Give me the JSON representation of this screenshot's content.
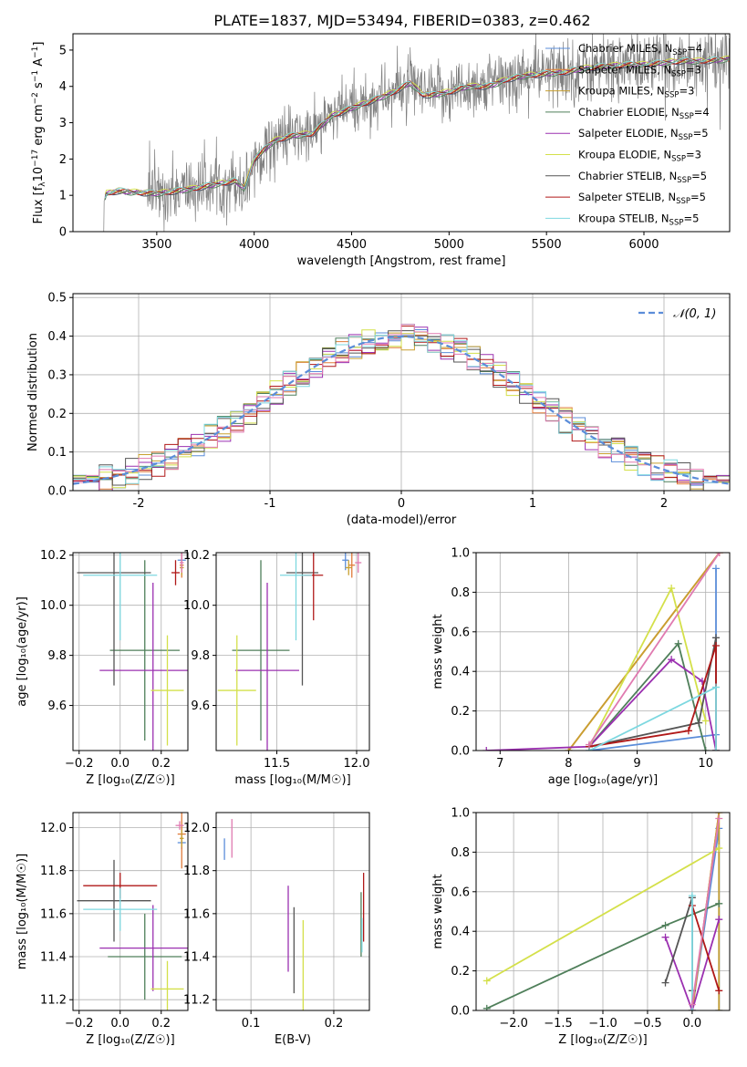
{
  "figure_title": "PLATE=1837, MJD=53494, FIBERID=0383, z=0.462",
  "colors": {
    "Chabrier MILES": "#5b8dd9",
    "Salpeter MILES": "#e07b3a",
    "Kroupa MILES": "#c8a030",
    "Chabrier ELODIE": "#4f7f5a",
    "Salpeter ELODIE": "#9b30b0",
    "Kroupa ELODIE": "#d4e04a",
    "Chabrier STELIB": "#555555",
    "Salpeter STELIB": "#b01818",
    "Kroupa STELIB": "#7dd8e0",
    "pink": "#e07ab0",
    "data": "#808080"
  },
  "chart_data": [
    {
      "id": "spectrum",
      "type": "line",
      "xlabel": "wavelength [Angstrom, rest frame]",
      "ylabel": "Flux [f_λ 10^-17 erg cm^-2 s^-1 A^-1]",
      "xlim": [
        3070,
        6440
      ],
      "ylim": [
        0,
        5.45
      ],
      "xticks": [
        3500,
        4000,
        4500,
        5000,
        5500,
        6000
      ],
      "yticks": [
        0,
        1,
        2,
        3,
        4,
        5
      ],
      "grid": false,
      "legend_position": "top-right",
      "legend": [
        {
          "label": "Chabrier MILES, N",
          "sub": "SSP",
          "suffix": "=4",
          "color": "#5b8dd9"
        },
        {
          "label": "Salpeter MILES, N",
          "sub": "SSP",
          "suffix": "=3",
          "color": "#e07b3a"
        },
        {
          "label": "Kroupa MILES, N",
          "sub": "SSP",
          "suffix": "=3",
          "color": "#c8a030"
        },
        {
          "label": "Chabrier ELODIE, N",
          "sub": "SSP",
          "suffix": "=4",
          "color": "#4f7f5a"
        },
        {
          "label": "Salpeter ELODIE, N",
          "sub": "SSP",
          "suffix": "=5",
          "color": "#9b30b0"
        },
        {
          "label": "Kroupa ELODIE, N",
          "sub": "SSP",
          "suffix": "=3",
          "color": "#d4e04a"
        },
        {
          "label": "Chabrier STELIB, N",
          "sub": "SSP",
          "suffix": "=5",
          "color": "#555555"
        },
        {
          "label": "Salpeter STELIB, N",
          "sub": "SSP",
          "suffix": "=5",
          "color": "#b01818"
        },
        {
          "label": "Kroupa STELIB, N",
          "sub": "SSP",
          "suffix": "=5",
          "color": "#7dd8e0"
        }
      ],
      "continuum": [
        [
          3230,
          0.85
        ],
        [
          3240,
          1.05
        ],
        [
          3300,
          1.12
        ],
        [
          3400,
          1.08
        ],
        [
          3500,
          1.05
        ],
        [
          3600,
          1.12
        ],
        [
          3700,
          1.2
        ],
        [
          3800,
          1.3
        ],
        [
          3900,
          1.4
        ],
        [
          3950,
          1.2
        ],
        [
          4000,
          2.0
        ],
        [
          4100,
          2.5
        ],
        [
          4200,
          2.65
        ],
        [
          4300,
          2.7
        ],
        [
          4400,
          3.2
        ],
        [
          4500,
          3.4
        ],
        [
          4600,
          3.6
        ],
        [
          4700,
          3.8
        ],
        [
          4800,
          4.1
        ],
        [
          4860,
          3.8
        ],
        [
          4900,
          3.75
        ],
        [
          5000,
          3.85
        ],
        [
          5100,
          4.0
        ],
        [
          5200,
          4.0
        ],
        [
          5300,
          4.2
        ],
        [
          5400,
          4.3
        ],
        [
          5500,
          4.35
        ],
        [
          5600,
          4.4
        ],
        [
          5700,
          4.5
        ],
        [
          5800,
          4.55
        ],
        [
          5900,
          4.6
        ],
        [
          6000,
          4.6
        ],
        [
          6100,
          4.65
        ],
        [
          6200,
          4.7
        ],
        [
          6300,
          4.7
        ],
        [
          6440,
          4.75
        ]
      ]
    },
    {
      "id": "residuals",
      "type": "line",
      "xlabel": "(data-model)/error",
      "ylabel": "Normed distribution",
      "xlim": [
        -2.5,
        2.5
      ],
      "ylim": [
        0,
        0.51
      ],
      "xticks": [
        -2,
        -1,
        0,
        1,
        2
      ],
      "yticks": [
        0.0,
        0.1,
        0.2,
        0.3,
        0.4,
        0.5
      ],
      "grid": true,
      "legend_position": "top-right",
      "legend_label": "𝒩(0, 1)",
      "normal_color": "#5b8dd9",
      "bin_width": 0.1
    },
    {
      "id": "age_vs_Z",
      "type": "scatter",
      "xlabel": "Z [log₁₀(Z/Z☉)]",
      "ylabel": "age  [log₁₀(age/yr)]",
      "xlim": [
        -0.23,
        0.33
      ],
      "ylim": [
        9.42,
        10.21
      ],
      "xticks": [
        -0.2,
        0.0,
        0.2
      ],
      "yticks": [
        9.6,
        9.8,
        10.0,
        10.2
      ],
      "grid": true,
      "points": [
        {
          "x": 0.3,
          "y": 10.18,
          "xerr": 0.02,
          "yerr": 0.04,
          "color": "#5b8dd9"
        },
        {
          "x": 0.3,
          "y": 10.16,
          "xerr": 0.01,
          "yerr": 0.05,
          "color": "#e07b3a"
        },
        {
          "x": 0.3,
          "y": 10.15,
          "xerr": 0.01,
          "yerr": 0.03,
          "color": "#c8a030"
        },
        {
          "x": 0.12,
          "y": 9.82,
          "xerr": 0.17,
          "yerr": 0.36,
          "color": "#4f7f5a"
        },
        {
          "x": 0.16,
          "y": 9.74,
          "xerr": 0.26,
          "yerr": 0.35,
          "color": "#9b30b0"
        },
        {
          "x": 0.23,
          "y": 9.66,
          "xerr": 0.08,
          "yerr": 0.22,
          "color": "#d4e04a"
        },
        {
          "x": -0.03,
          "y": 10.13,
          "xerr": 0.18,
          "yerr": 0.45,
          "color": "#555555"
        },
        {
          "x": 0.27,
          "y": 10.13,
          "xerr": 0.02,
          "yerr": 0.05,
          "color": "#b01818"
        },
        {
          "x": 0.0,
          "y": 10.12,
          "xerr": 0.18,
          "yerr": 0.26,
          "color": "#7dd8e0"
        },
        {
          "x": 0.3,
          "y": 10.17,
          "xerr": 0.01,
          "yerr": 0.04,
          "color": "#e07ab0"
        }
      ]
    },
    {
      "id": "age_vs_mass",
      "type": "scatter",
      "xlabel": "mass [log₁₀(M/M☉)]",
      "ylabel": "",
      "xlim": [
        11.12,
        12.08
      ],
      "ylim": [
        9.42,
        10.21
      ],
      "xticks": [
        11.5,
        12.0
      ],
      "yticks": [
        9.6,
        9.8,
        10.0,
        10.2
      ],
      "grid": true,
      "points": [
        {
          "x": 11.93,
          "y": 10.18,
          "xerr": 0.02,
          "yerr": 0.04,
          "color": "#5b8dd9"
        },
        {
          "x": 11.97,
          "y": 10.16,
          "xerr": 0.02,
          "yerr": 0.05,
          "color": "#e07b3a"
        },
        {
          "x": 11.95,
          "y": 10.15,
          "xerr": 0.02,
          "yerr": 0.03,
          "color": "#c8a030"
        },
        {
          "x": 11.4,
          "y": 9.82,
          "xerr": 0.18,
          "yerr": 0.36,
          "color": "#4f7f5a"
        },
        {
          "x": 11.44,
          "y": 9.74,
          "xerr": 0.2,
          "yerr": 0.35,
          "color": "#9b30b0"
        },
        {
          "x": 11.25,
          "y": 9.66,
          "xerr": 0.12,
          "yerr": 0.22,
          "color": "#d4e04a"
        },
        {
          "x": 11.66,
          "y": 10.13,
          "xerr": 0.1,
          "yerr": 0.45,
          "color": "#555555"
        },
        {
          "x": 11.73,
          "y": 10.12,
          "xerr": 0.06,
          "yerr": 0.18,
          "color": "#b01818"
        },
        {
          "x": 11.62,
          "y": 10.12,
          "xerr": 0.1,
          "yerr": 0.26,
          "color": "#7dd8e0"
        },
        {
          "x": 12.01,
          "y": 10.17,
          "xerr": 0.02,
          "yerr": 0.04,
          "color": "#e07ab0"
        }
      ]
    },
    {
      "id": "weight_vs_age",
      "type": "line",
      "xlabel": "age  [log₁₀(age/yr)]",
      "ylabel": "mass weight",
      "xlim": [
        6.65,
        10.35
      ],
      "ylim": [
        0,
        1
      ],
      "xticks": [
        7,
        8,
        9,
        10
      ],
      "yticks": [
        0.0,
        0.2,
        0.4,
        0.6,
        0.8,
        1.0
      ],
      "grid": true,
      "series": [
        {
          "color": "#5b8dd9",
          "points": [
            [
              8.3,
              0.0
            ],
            [
              10.15,
              0.08
            ],
            [
              10.15,
              0.92
            ],
            [
              10.15,
              0.0
            ]
          ]
        },
        {
          "color": "#e07b3a",
          "points": [
            [
              8.0,
              0.0
            ],
            [
              10.2,
              1.0
            ]
          ]
        },
        {
          "color": "#c8a030",
          "points": [
            [
              8.0,
              0.0
            ],
            [
              10.2,
              1.0
            ]
          ]
        },
        {
          "color": "#4f7f5a",
          "points": [
            [
              8.3,
              0.02
            ],
            [
              9.6,
              0.54
            ],
            [
              10.0,
              0.0
            ]
          ]
        },
        {
          "color": "#9b30b0",
          "points": [
            [
              6.8,
              0.0
            ],
            [
              8.3,
              0.02
            ],
            [
              9.5,
              0.46
            ],
            [
              9.95,
              0.35
            ],
            [
              10.15,
              0.0
            ]
          ]
        },
        {
          "color": "#d4e04a",
          "points": [
            [
              8.3,
              0.02
            ],
            [
              9.5,
              0.82
            ],
            [
              10.0,
              0.15
            ]
          ]
        },
        {
          "color": "#555555",
          "points": [
            [
              8.3,
              0.02
            ],
            [
              9.9,
              0.14
            ],
            [
              10.15,
              0.57
            ],
            [
              10.15,
              0.0
            ]
          ]
        },
        {
          "color": "#b01818",
          "points": [
            [
              8.3,
              0.02
            ],
            [
              9.75,
              0.1
            ],
            [
              10.15,
              0.53
            ],
            [
              10.15,
              0.0
            ]
          ]
        },
        {
          "color": "#7dd8e0",
          "points": [
            [
              8.3,
              0.0
            ],
            [
              10.15,
              0.32
            ],
            [
              10.15,
              0.0
            ]
          ]
        },
        {
          "color": "#e07ab0",
          "points": [
            [
              8.3,
              0.03
            ],
            [
              10.2,
              1.0
            ]
          ]
        }
      ]
    },
    {
      "id": "mass_vs_Z",
      "type": "scatter",
      "xlabel": "Z [log₁₀(Z/Z☉)]",
      "ylabel": "mass [log₁₀(M/M☉)]",
      "xlim": [
        -0.23,
        0.33
      ],
      "ylim": [
        11.15,
        12.07
      ],
      "xticks": [
        -0.2,
        0.0,
        0.2
      ],
      "yticks": [
        11.2,
        11.4,
        11.6,
        11.8,
        12.0
      ],
      "grid": true,
      "points": [
        {
          "x": 0.3,
          "y": 11.93,
          "xerr": 0.02,
          "yerr": 0.03,
          "color": "#5b8dd9"
        },
        {
          "x": 0.3,
          "y": 11.97,
          "xerr": 0.02,
          "yerr": 0.16,
          "color": "#e07b3a"
        },
        {
          "x": 0.3,
          "y": 11.95,
          "xerr": 0.01,
          "yerr": 0.04,
          "color": "#c8a030"
        },
        {
          "x": 0.12,
          "y": 11.4,
          "xerr": 0.18,
          "yerr": 0.2,
          "color": "#4f7f5a"
        },
        {
          "x": 0.16,
          "y": 11.44,
          "xerr": 0.26,
          "yerr": 0.2,
          "color": "#9b30b0"
        },
        {
          "x": 0.23,
          "y": 11.25,
          "xerr": 0.08,
          "yerr": 0.13,
          "color": "#d4e04a"
        },
        {
          "x": -0.03,
          "y": 11.66,
          "xerr": 0.18,
          "yerr": 0.19,
          "color": "#555555"
        },
        {
          "x": 0.0,
          "y": 11.73,
          "xerr": 0.18,
          "yerr": 0.06,
          "color": "#b01818"
        },
        {
          "x": 0.0,
          "y": 11.62,
          "xerr": 0.18,
          "yerr": 0.1,
          "color": "#7dd8e0"
        },
        {
          "x": 0.29,
          "y": 12.01,
          "xerr": 0.02,
          "yerr": 0.02,
          "color": "#e07ab0"
        }
      ]
    },
    {
      "id": "mass_vs_ebv",
      "type": "scatter",
      "xlabel": "E(B-V)",
      "ylabel": "",
      "xlim": [
        0.058,
        0.243
      ],
      "ylim": [
        11.15,
        12.07
      ],
      "xticks": [
        0.1,
        0.2
      ],
      "yticks": [
        11.2,
        11.4,
        11.6,
        11.8,
        12.0
      ],
      "grid": true,
      "points": [
        {
          "x": 0.068,
          "y": 11.9,
          "xerr": 0.0,
          "yerr": 0.05,
          "color": "#5b8dd9"
        },
        {
          "x": 0.077,
          "y": 11.95,
          "xerr": 0.0,
          "yerr": 0.09,
          "color": "#e07ab0"
        },
        {
          "x": 0.145,
          "y": 11.53,
          "xerr": 0.0,
          "yerr": 0.2,
          "color": "#9b30b0"
        },
        {
          "x": 0.152,
          "y": 11.43,
          "xerr": 0.0,
          "yerr": 0.2,
          "color": "#555555"
        },
        {
          "x": 0.163,
          "y": 11.36,
          "xerr": 0.0,
          "yerr": 0.21,
          "color": "#d4e04a"
        },
        {
          "x": 0.236,
          "y": 11.63,
          "xerr": 0.0,
          "yerr": 0.16,
          "color": "#b01818"
        },
        {
          "x": 0.233,
          "y": 11.55,
          "xerr": 0.0,
          "yerr": 0.15,
          "color": "#4f7f5a"
        },
        {
          "x": 0.234,
          "y": 11.5,
          "xerr": 0.0,
          "yerr": 0.08,
          "color": "#7dd8e0"
        }
      ]
    },
    {
      "id": "weight_vs_Z",
      "type": "line",
      "xlabel": "Z [log₁₀(Z/Z☉)]",
      "ylabel": "mass weight",
      "xlim": [
        -2.42,
        0.42
      ],
      "ylim": [
        0,
        1
      ],
      "xticks": [
        -2.0,
        -1.5,
        -1.0,
        -0.5,
        0.0
      ],
      "yticks": [
        0.0,
        0.2,
        0.4,
        0.6,
        0.8,
        1.0
      ],
      "grid": true,
      "series": [
        {
          "color": "#5b8dd9",
          "points": [
            [
              0.0,
              0.0
            ],
            [
              0.3,
              0.92
            ],
            [
              0.3,
              0.0
            ]
          ]
        },
        {
          "color": "#e07b3a",
          "points": [
            [
              0.0,
              0.0
            ],
            [
              0.3,
              1.0
            ]
          ]
        },
        {
          "color": "#c8a030",
          "points": [
            [
              0.0,
              0.0
            ],
            [
              0.3,
              1.0
            ],
            [
              0.3,
              0.0
            ]
          ]
        },
        {
          "color": "#4f7f5a",
          "points": [
            [
              -2.3,
              0.01
            ],
            [
              -0.3,
              0.43
            ],
            [
              0.3,
              0.54
            ]
          ]
        },
        {
          "color": "#9b30b0",
          "points": [
            [
              -0.3,
              0.37
            ],
            [
              0.0,
              0.0
            ],
            [
              0.3,
              0.46
            ]
          ]
        },
        {
          "color": "#d4e04a",
          "points": [
            [
              -2.3,
              0.15
            ],
            [
              0.3,
              0.82
            ]
          ]
        },
        {
          "color": "#555555",
          "points": [
            [
              -0.3,
              0.14
            ],
            [
              0.0,
              0.57
            ],
            [
              0.0,
              0.1
            ]
          ]
        },
        {
          "color": "#b01818",
          "points": [
            [
              0.0,
              0.53
            ],
            [
              0.3,
              0.1
            ]
          ]
        },
        {
          "color": "#7dd8e0",
          "points": [
            [
              0.0,
              0.58
            ],
            [
              0.0,
              0.0
            ]
          ]
        },
        {
          "color": "#e07ab0",
          "points": [
            [
              0.0,
              0.03
            ],
            [
              0.3,
              0.97
            ]
          ]
        }
      ]
    }
  ]
}
